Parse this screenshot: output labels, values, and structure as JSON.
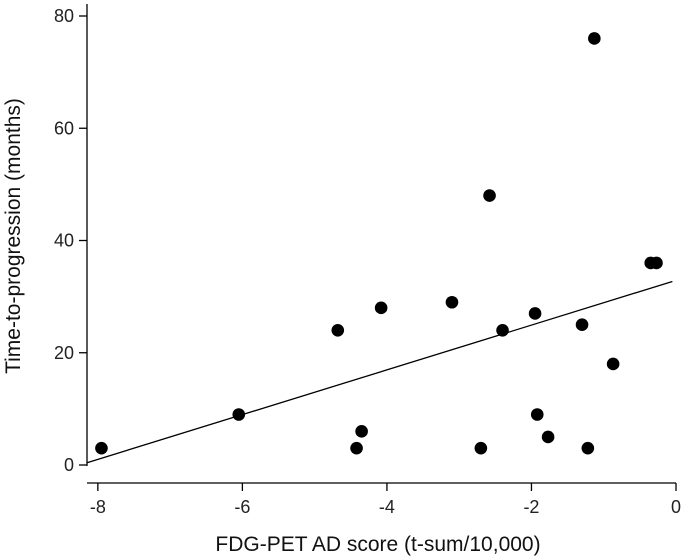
{
  "chart_data": {
    "type": "scatter",
    "title": "",
    "xlabel": "FDG-PET AD score (t-sum/10,000)",
    "ylabel": "Time-to-progression (months)",
    "xlim": [
      -8.15,
      0
    ],
    "ylim": [
      0,
      80
    ],
    "x_ticks": [
      -8,
      -6,
      -4,
      -2,
      0
    ],
    "y_ticks": [
      0,
      20,
      40,
      60,
      80
    ],
    "grid": false,
    "series": [
      {
        "name": "patients",
        "points": [
          {
            "x": -7.95,
            "y": 3
          },
          {
            "x": -6.05,
            "y": 9
          },
          {
            "x": -4.68,
            "y": 24
          },
          {
            "x": -4.42,
            "y": 3
          },
          {
            "x": -4.35,
            "y": 6
          },
          {
            "x": -4.08,
            "y": 28
          },
          {
            "x": -3.1,
            "y": 29
          },
          {
            "x": -2.7,
            "y": 3
          },
          {
            "x": -2.58,
            "y": 48
          },
          {
            "x": -2.4,
            "y": 24
          },
          {
            "x": -1.95,
            "y": 27
          },
          {
            "x": -1.92,
            "y": 9
          },
          {
            "x": -1.77,
            "y": 5
          },
          {
            "x": -1.3,
            "y": 25
          },
          {
            "x": -1.22,
            "y": 3
          },
          {
            "x": -1.13,
            "y": 76
          },
          {
            "x": -0.87,
            "y": 18
          },
          {
            "x": -0.35,
            "y": 36
          },
          {
            "x": -0.27,
            "y": 36
          }
        ]
      }
    ],
    "regression_line": {
      "x": [
        -8.15,
        -0.05
      ],
      "y": [
        0.4,
        32.7
      ]
    }
  }
}
